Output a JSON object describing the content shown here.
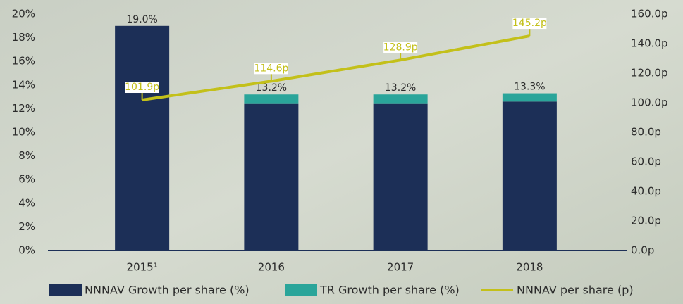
{
  "chart_data": {
    "type": "bar-line",
    "categories": [
      "2015¹",
      "2016",
      "2017",
      "2018"
    ],
    "series": [
      {
        "name": "NNNAV Growth per share (%)",
        "color": "#1c2f57",
        "type": "bar",
        "values": [
          19.0,
          12.4,
          12.4,
          12.6
        ]
      },
      {
        "name": "TR Growth per share (%)",
        "color": "#2aa59a",
        "type": "bar",
        "values": [
          0,
          0.8,
          0.8,
          0.7
        ]
      },
      {
        "name": "NNNAV per share (p)",
        "color": "#c3c01a",
        "type": "line",
        "axis": "y2",
        "values": [
          101.9,
          114.6,
          128.9,
          145.2
        ],
        "value_labels": [
          "101.9p",
          "114.6p",
          "128.9p",
          "145.2p"
        ]
      }
    ],
    "totals": {
      "values": [
        19.0,
        13.2,
        13.2,
        13.3
      ],
      "value_labels": [
        "19.0%",
        "13.2%",
        "13.2%",
        "13.3%"
      ]
    },
    "ylim": [
      0,
      20
    ],
    "yticks": [
      {
        "value": 0,
        "label": "0%"
      },
      {
        "value": 2,
        "label": "2%"
      },
      {
        "value": 4,
        "label": "4%"
      },
      {
        "value": 6,
        "label": "6%"
      },
      {
        "value": 8,
        "label": "8%"
      },
      {
        "value": 10,
        "label": "10%"
      },
      {
        "value": 12,
        "label": "12%"
      },
      {
        "value": 14,
        "label": "14%"
      },
      {
        "value": 16,
        "label": "16%"
      },
      {
        "value": 18,
        "label": "18%"
      },
      {
        "value": 20,
        "label": "20%"
      }
    ],
    "y2lim": [
      0,
      160
    ],
    "y2ticks": [
      {
        "value": 0,
        "label": "0.0p"
      },
      {
        "value": 20,
        "label": "20.0p"
      },
      {
        "value": 40,
        "label": "40.0p"
      },
      {
        "value": 60,
        "label": "60.0p"
      },
      {
        "value": 80,
        "label": "80.0p"
      },
      {
        "value": 100,
        "label": "100.0p"
      },
      {
        "value": 120,
        "label": "120.0p"
      },
      {
        "value": 140,
        "label": "140.0p"
      },
      {
        "value": 160,
        "label": "160.0p"
      }
    ],
    "legend": "bottom"
  }
}
